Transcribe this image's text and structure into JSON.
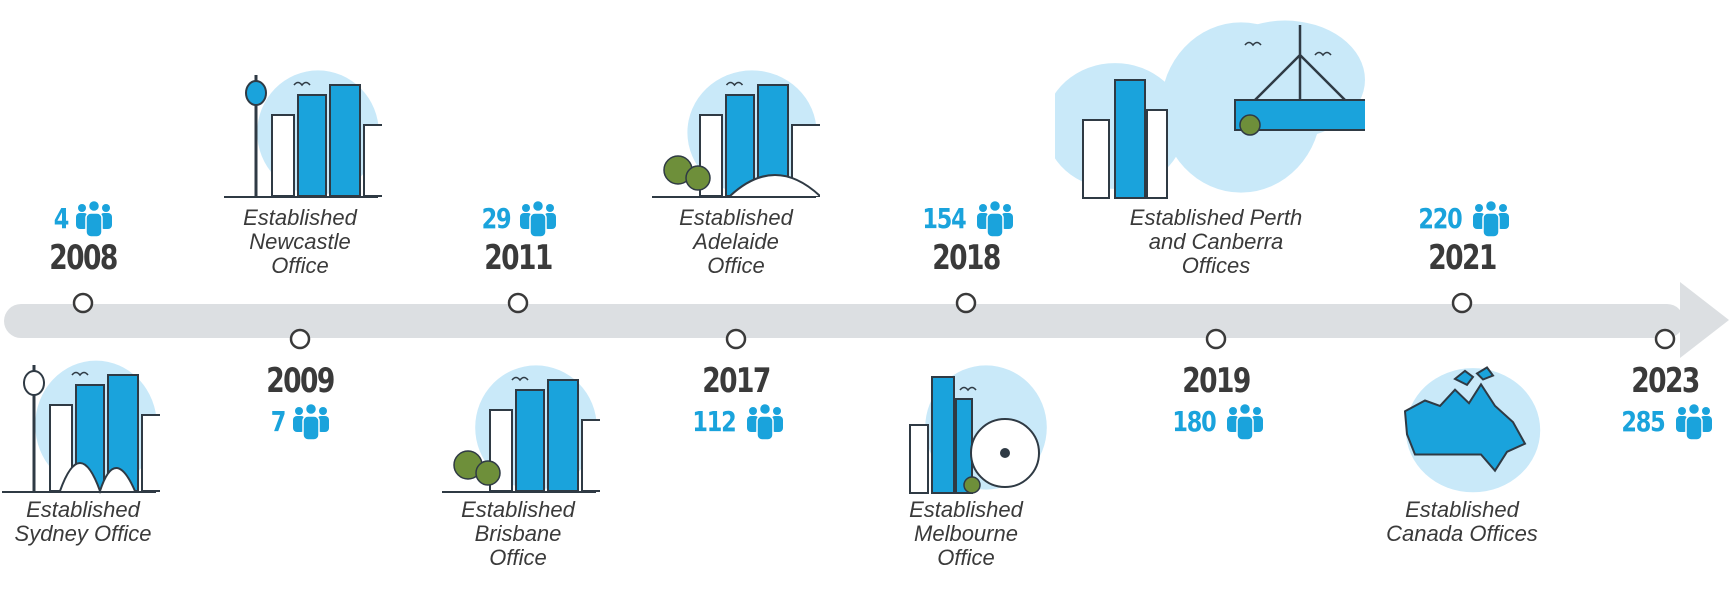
{
  "milestones": [
    {
      "year": "2008",
      "staff": "4",
      "caption_lines": [
        "Established",
        "Sydney Office"
      ],
      "icon": "sydney-skyline-icon"
    },
    {
      "year": "2009",
      "staff": "7",
      "caption_lines": [
        "Established",
        "Newcastle",
        "Office"
      ],
      "icon": "newcastle-skyline-icon"
    },
    {
      "year": "2011",
      "staff": "29",
      "caption_lines": [
        "Established",
        "Brisbane",
        "Office"
      ],
      "icon": "brisbane-skyline-icon"
    },
    {
      "year": "2017",
      "staff": "112",
      "caption_lines": [
        "Established",
        "Adelaide",
        "Office"
      ],
      "icon": "adelaide-skyline-icon"
    },
    {
      "year": "2018",
      "staff": "154",
      "caption_lines": [
        "Established",
        "Melbourne",
        "Office"
      ],
      "icon": "melbourne-skyline-icon"
    },
    {
      "year": "2019",
      "staff": "180",
      "caption_lines": [
        "Established Perth",
        "and Canberra",
        "Offices"
      ],
      "icon": "perth-canberra-skyline-icon"
    },
    {
      "year": "2021",
      "staff": "220",
      "caption_lines": [
        "Established",
        "Canada Offices"
      ],
      "icon": "canada-map-icon"
    },
    {
      "year": "2023",
      "staff": "285",
      "caption_lines": [],
      "icon": ""
    }
  ],
  "colors": {
    "accent": "#1aa3dc",
    "blob": "#c9e9f9",
    "line": "#dcdfe2",
    "text": "#3a3a3a",
    "tree": "#6e8f3a"
  }
}
